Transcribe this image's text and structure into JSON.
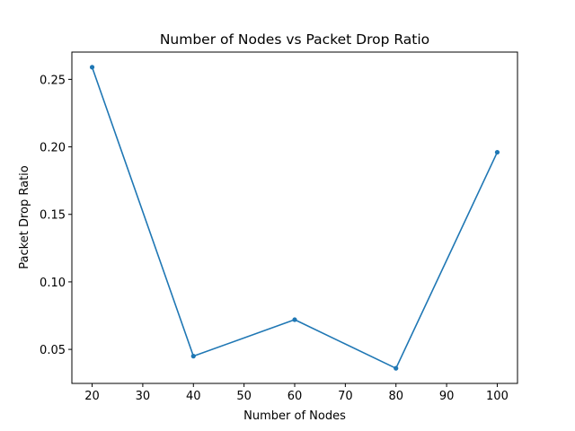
{
  "chart_data": {
    "type": "line",
    "title": "Number of Nodes vs Packet Drop Ratio",
    "xlabel": "Number of Nodes",
    "ylabel": "Packet Drop Ratio",
    "x": [
      20,
      40,
      60,
      80,
      100
    ],
    "series": [
      {
        "values": [
          0.259,
          0.045,
          0.072,
          0.036,
          0.196
        ],
        "color": "#1f77b4",
        "marker": "circle"
      }
    ],
    "xlim": [
      16,
      104
    ],
    "ylim": [
      0.0248,
      0.2702
    ],
    "xticks": [
      20,
      30,
      40,
      50,
      60,
      70,
      80,
      90,
      100
    ],
    "yticks": [
      0.05,
      0.1,
      0.15,
      0.2,
      0.25
    ],
    "ytick_labels": [
      "0.05",
      "0.10",
      "0.15",
      "0.20",
      "0.25"
    ],
    "grid": false,
    "legend": false
  }
}
